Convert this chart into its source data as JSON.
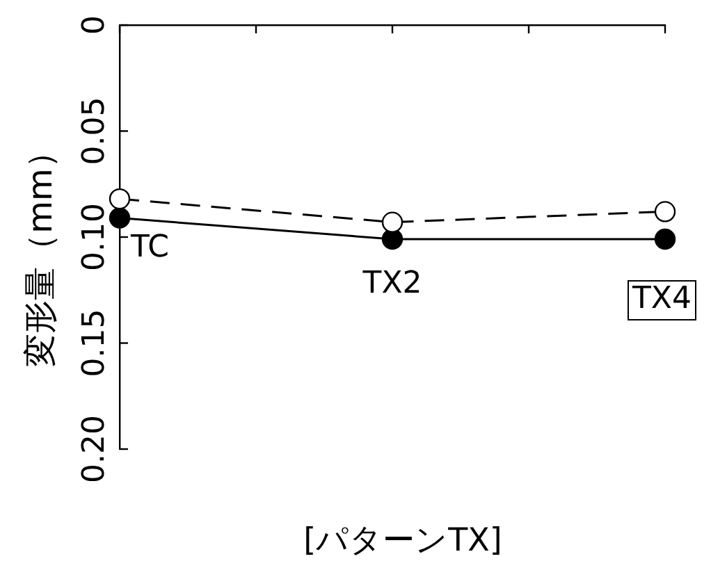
{
  "chart_data": {
    "type": "line",
    "xlabel": "[パターンTX]",
    "ylabel": "変形量（mm）",
    "categories": [
      "TC",
      "TX2",
      "TX4"
    ],
    "ylim": [
      0.2,
      0
    ],
    "yticks": [
      {
        "value": 0,
        "label": "0"
      },
      0.05,
      {
        "value": 0.1,
        "label": "0.10"
      },
      0.15,
      {
        "value": 0.2,
        "label": "0.20"
      }
    ],
    "series": [
      {
        "color": "#000000",
        "values": [
          0.082,
          0.093,
          0.088
        ],
        "line_style": "dashed"
      },
      {
        "color": "#000000",
        "values": [
          0.091,
          0.101,
          0.101
        ],
        "line_style": "solid"
      }
    ],
    "marker": "circle",
    "grid": false,
    "legend": false
  }
}
